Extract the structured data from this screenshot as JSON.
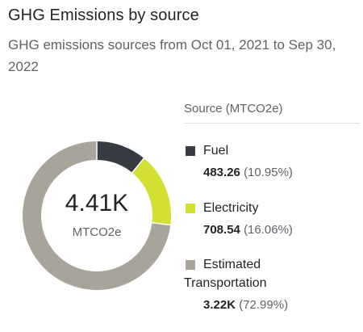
{
  "card": {
    "title": "GHG Emissions by source",
    "subtitle": "GHG emissions sources from Oct 01, 2021 to Sep 30, 2022"
  },
  "donut": {
    "center_value": "4.41K",
    "center_unit": "MTCO2e"
  },
  "legend": {
    "header": "Source (MTCO2e)"
  },
  "chart_data": {
    "type": "pie",
    "style": "donut",
    "total_label": "4.41K",
    "unit": "MTCO2e",
    "slices": [
      {
        "name": "Fuel",
        "value": 483.26,
        "value_label": "483.26",
        "percent": 10.95,
        "percent_label": "(10.95%)",
        "color": "#363c41"
      },
      {
        "name": "Electricity",
        "value": 708.54,
        "value_label": "708.54",
        "percent": 16.06,
        "percent_label": "(16.06%)",
        "color": "#d4df33"
      },
      {
        "name": "Estimated Transportation",
        "value": 3220,
        "value_label": "3.22K",
        "percent": 72.99,
        "percent_label": "(72.99%)",
        "color": "#a8a49a"
      }
    ]
  }
}
